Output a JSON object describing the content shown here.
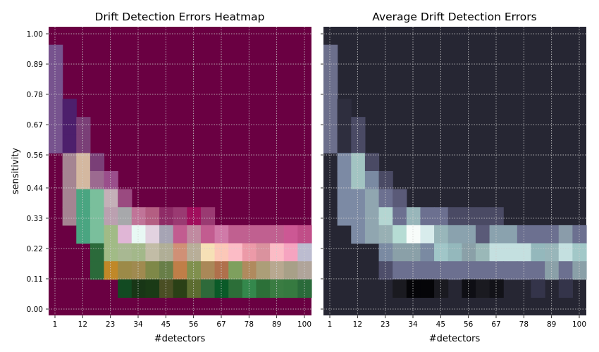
{
  "chart_data": [
    {
      "type": "heatmap",
      "title": "Drift Detection Errors Heatmap",
      "xlabel": "#detectors",
      "ylabel": "sensitivity",
      "x_ticks": [
        "1",
        "12",
        "23",
        "34",
        "45",
        "56",
        "67",
        "78",
        "89",
        "100"
      ],
      "y_ticks": [
        "0.00",
        "0.11",
        "0.22",
        "0.33",
        "0.44",
        "0.56",
        "0.67",
        "0.78",
        "0.89",
        "1.00"
      ],
      "grid": true,
      "background": "#6a0042",
      "cells": [
        {
          "x": 1,
          "y": 0.89,
          "color": "#77538e"
        },
        {
          "x": 1,
          "y": 0.78,
          "color": "#77538e"
        },
        {
          "x": 1,
          "y": 0.67,
          "color": "#77538e"
        },
        {
          "x": 1,
          "y": 0.56,
          "color": "#77538e"
        },
        {
          "x": 1,
          "y": 0.44,
          "color": "#77538e"
        },
        {
          "x": 12,
          "y": 0.67,
          "color": "#4d1f6c"
        },
        {
          "x": 12,
          "y": 0.56,
          "color": "#4d1f6c"
        },
        {
          "x": 12,
          "y": 0.44,
          "color": "#4d1f6c"
        },
        {
          "x": 12,
          "y": 0.33,
          "color": "#a58492"
        },
        {
          "x": 12,
          "y": 0.22,
          "color": "#a58492"
        },
        {
          "x": 23,
          "y": 0.56,
          "color": "#7a3f77"
        },
        {
          "x": 23,
          "y": 0.44,
          "color": "#7a3f77"
        },
        {
          "x": 23,
          "y": 0.33,
          "color": "#d4b8a0"
        },
        {
          "x": 23,
          "y": 0.22,
          "color": "#4aa581"
        },
        {
          "x": 34,
          "y": 0.22,
          "color": "#7abf9c"
        },
        {
          "x": 34,
          "y": 0.11,
          "color": "#2b6a3a"
        }
      ],
      "series": [
        {
          "x": [
            1,
            12,
            23,
            34,
            45,
            56,
            67,
            78,
            89,
            100
          ],
          "values": [
            0.11,
            0.22,
            0.22,
            0.22,
            0.33,
            0.22,
            0.22,
            0.22,
            0.22,
            0.22
          ]
        }
      ],
      "rows": [
        [
          "#6a0042",
          "#6a0042",
          "#6a0042",
          "#6a0042",
          "#6a0042",
          "#6a0042",
          "#6a0042",
          "#6a0042",
          "#6a0042",
          "#6a0042",
          "#6a0042",
          "#6a0042",
          "#6a0042",
          "#6a0042",
          "#6a0042",
          "#6a0042",
          "#6a0042",
          "#6a0042",
          "#6a0042"
        ],
        [
          "#77538e",
          "#6a0042",
          "#6a0042",
          "#6a0042",
          "#6a0042",
          "#6a0042",
          "#6a0042",
          "#6a0042",
          "#6a0042",
          "#6a0042",
          "#6a0042",
          "#6a0042",
          "#6a0042",
          "#6a0042",
          "#6a0042",
          "#6a0042",
          "#6a0042",
          "#6a0042",
          "#6a0042"
        ],
        [
          "#77538e",
          "#6a0042",
          "#6a0042",
          "#6a0042",
          "#6a0042",
          "#6a0042",
          "#6a0042",
          "#6a0042",
          "#6a0042",
          "#6a0042",
          "#6a0042",
          "#6a0042",
          "#6a0042",
          "#6a0042",
          "#6a0042",
          "#6a0042",
          "#6a0042",
          "#6a0042",
          "#6a0042"
        ],
        [
          "#77538e",
          "#6a0042",
          "#6a0042",
          "#6a0042",
          "#6a0042",
          "#6a0042",
          "#6a0042",
          "#6a0042",
          "#6a0042",
          "#6a0042",
          "#6a0042",
          "#6a0042",
          "#6a0042",
          "#6a0042",
          "#6a0042",
          "#6a0042",
          "#6a0042",
          "#6a0042",
          "#6a0042"
        ],
        [
          "#77538e",
          "#4d1f6c",
          "#6a0042",
          "#6a0042",
          "#6a0042",
          "#6a0042",
          "#6a0042",
          "#6a0042",
          "#6a0042",
          "#6a0042",
          "#6a0042",
          "#6a0042",
          "#6a0042",
          "#6a0042",
          "#6a0042",
          "#6a0042",
          "#6a0042",
          "#6a0042",
          "#6a0042"
        ],
        [
          "#77538e",
          "#4d1f6c",
          "#7a3f77",
          "#6a0042",
          "#6a0042",
          "#6a0042",
          "#6a0042",
          "#6a0042",
          "#6a0042",
          "#6a0042",
          "#6a0042",
          "#6a0042",
          "#6a0042",
          "#6a0042",
          "#6a0042",
          "#6a0042",
          "#6a0042",
          "#6a0042",
          "#6a0042"
        ],
        [
          "#77538e",
          "#4d1f6c",
          "#7a3f77",
          "#6a0042",
          "#6a0042",
          "#6a0042",
          "#6a0042",
          "#6a0042",
          "#6a0042",
          "#6a0042",
          "#6a0042",
          "#6a0042",
          "#6a0042",
          "#6a0042",
          "#6a0042",
          "#6a0042",
          "#6a0042",
          "#6a0042",
          "#6a0042"
        ],
        [
          "#6a0042",
          "#a58492",
          "#d4b8a0",
          "#7a3f77",
          "#6a0042",
          "#6a0042",
          "#6a0042",
          "#6a0042",
          "#6a0042",
          "#6a0042",
          "#6a0042",
          "#6a0042",
          "#6a0042",
          "#6a0042",
          "#6a0042",
          "#6a0042",
          "#6a0042",
          "#6a0042",
          "#6a0042"
        ],
        [
          "#6a0042",
          "#a58492",
          "#d4b8a0",
          "#9c6a90",
          "#9a4e8b",
          "#6a0042",
          "#6a0042",
          "#6a0042",
          "#6a0042",
          "#6a0042",
          "#6a0042",
          "#6a0042",
          "#6a0042",
          "#6a0042",
          "#6a0042",
          "#6a0042",
          "#6a0042",
          "#6a0042",
          "#6a0042"
        ],
        [
          "#6a0042",
          "#a58492",
          "#4aa581",
          "#7abf9c",
          "#c4b0b8",
          "#9a4a80",
          "#6a0042",
          "#6a0042",
          "#6a0042",
          "#6a0042",
          "#6a0042",
          "#6a0042",
          "#6a0042",
          "#6a0042",
          "#6a0042",
          "#6a0042",
          "#6a0042",
          "#6a0042",
          "#6a0042"
        ],
        [
          "#6a0042",
          "#a58492",
          "#4aa581",
          "#7abf9c",
          "#bba0b0",
          "#a7a8ab",
          "#c07498",
          "#b45e82",
          "#8e2b66",
          "#9a3a72",
          "#a00e5c",
          "#9a3a72",
          "#6a0042",
          "#6a0042",
          "#6a0042",
          "#6a0042",
          "#6a0042",
          "#6a0042",
          "#6a0042"
        ],
        [
          "#6a0042",
          "#6a0042",
          "#4aa581",
          "#7abf9c",
          "#a1bb86",
          "#e0b6d6",
          "#e8f8f4",
          "#e2d2e0",
          "#a6a4b4",
          "#c25c90",
          "#c08aa0",
          "#c25c90",
          "#d07aa8",
          "#c06090",
          "#c06090",
          "#c06090",
          "#c06090",
          "#cc5894",
          "#c04e88"
        ],
        [
          "#6a0042",
          "#6a0042",
          "#6a0042",
          "#2b6a3a",
          "#a1bb86",
          "#a8b892",
          "#a3b88a",
          "#c2bca6",
          "#b0ae96",
          "#d09076",
          "#b8ae98",
          "#f6e0b6",
          "#fcc8b8",
          "#fcbcc6",
          "#ec9aa8",
          "#da929e",
          "#fcbcc6",
          "#f6a4c0",
          "#bcbcd0"
        ],
        [
          "#6a0042",
          "#6a0042",
          "#6a0042",
          "#2b6a3a",
          "#c08828",
          "#9c8a48",
          "#a08a50",
          "#7e8848",
          "#687e48",
          "#c07e48",
          "#80904e",
          "#aa8858",
          "#b0704c",
          "#7ea05e",
          "#b08a5e",
          "#ac9e78",
          "#b8a890",
          "#a8a088",
          "#b0a49a"
        ],
        [
          "#6a0042",
          "#6a0042",
          "#6a0042",
          "#6a0042",
          "#6a0042",
          "#124a22",
          "#183616",
          "#1a3a16",
          "#4a4e24",
          "#2a4016",
          "#5c6c30",
          "#2e6a3a",
          "#0a5a28",
          "#2c6e38",
          "#34884c",
          "#2c7038",
          "#3a7c42",
          "#367a40",
          "#2a6a3a"
        ],
        [
          "#6a0042",
          "#6a0042",
          "#6a0042",
          "#6a0042",
          "#6a0042",
          "#6a0042",
          "#6a0042",
          "#6a0042",
          "#6a0042",
          "#6a0042",
          "#6a0042",
          "#6a0042",
          "#6a0042",
          "#6a0042",
          "#6a0042",
          "#6a0042",
          "#6a0042",
          "#6a0042",
          "#6a0042"
        ]
      ]
    },
    {
      "type": "heatmap",
      "title": "Average Drift Detection Errors",
      "xlabel": "#detectors",
      "y_ticks": [
        "0.00",
        "0.11",
        "0.22",
        "0.33",
        "0.44",
        "0.56",
        "0.67",
        "0.78",
        "0.89",
        "1.00"
      ],
      "x_ticks": [
        "1",
        "12",
        "23",
        "34",
        "45",
        "56",
        "67",
        "78",
        "89",
        "100"
      ],
      "grid": true,
      "background": "#262633",
      "rows": [
        [
          "#262633",
          "#262633",
          "#262633",
          "#262633",
          "#262633",
          "#262633",
          "#262633",
          "#262633",
          "#262633",
          "#262633",
          "#262633",
          "#262633",
          "#262633",
          "#262633",
          "#262633",
          "#262633",
          "#262633",
          "#262633",
          "#262633"
        ],
        [
          "#6c6f8c",
          "#262633",
          "#262633",
          "#262633",
          "#262633",
          "#262633",
          "#262633",
          "#262633",
          "#262633",
          "#262633",
          "#262633",
          "#262633",
          "#262633",
          "#262633",
          "#262633",
          "#262633",
          "#262633",
          "#262633",
          "#262633"
        ],
        [
          "#6c6f8c",
          "#262633",
          "#262633",
          "#262633",
          "#262633",
          "#262633",
          "#262633",
          "#262633",
          "#262633",
          "#262633",
          "#262633",
          "#262633",
          "#262633",
          "#262633",
          "#262633",
          "#262633",
          "#262633",
          "#262633",
          "#262633"
        ],
        [
          "#6c6f8c",
          "#262633",
          "#262633",
          "#262633",
          "#262633",
          "#262633",
          "#262633",
          "#262633",
          "#262633",
          "#262633",
          "#262633",
          "#262633",
          "#262633",
          "#262633",
          "#262633",
          "#262633",
          "#262633",
          "#262633",
          "#262633"
        ],
        [
          "#6c6f8c",
          "#2e2e3e",
          "#262633",
          "#262633",
          "#262633",
          "#262633",
          "#262633",
          "#262633",
          "#262633",
          "#262633",
          "#262633",
          "#262633",
          "#262633",
          "#262633",
          "#262633",
          "#262633",
          "#262633",
          "#262633",
          "#262633"
        ],
        [
          "#6c6f8c",
          "#2e2e3e",
          "#4a4a64",
          "#262633",
          "#262633",
          "#262633",
          "#262633",
          "#262633",
          "#262633",
          "#262633",
          "#262633",
          "#262633",
          "#262633",
          "#262633",
          "#262633",
          "#262633",
          "#262633",
          "#262633",
          "#262633"
        ],
        [
          "#6c6f8c",
          "#2e2e3e",
          "#4a4a64",
          "#262633",
          "#262633",
          "#262633",
          "#262633",
          "#262633",
          "#262633",
          "#262633",
          "#262633",
          "#262633",
          "#262633",
          "#262633",
          "#262633",
          "#262633",
          "#262633",
          "#262633",
          "#262633"
        ],
        [
          "#262633",
          "#7c8aa4",
          "#a2c4c2",
          "#4a4a64",
          "#262633",
          "#262633",
          "#262633",
          "#262633",
          "#262633",
          "#262633",
          "#262633",
          "#262633",
          "#262633",
          "#262633",
          "#262633",
          "#262633",
          "#262633",
          "#262633",
          "#262633"
        ],
        [
          "#262633",
          "#7c8aa4",
          "#a2c4c2",
          "#7a8aa2",
          "#4a4a64",
          "#262633",
          "#262633",
          "#262633",
          "#262633",
          "#262633",
          "#262633",
          "#262633",
          "#262633",
          "#262633",
          "#262633",
          "#262633",
          "#262633",
          "#262633",
          "#262633"
        ],
        [
          "#262633",
          "#7c8aa4",
          "#7c8aa4",
          "#90a6b0",
          "#6c7090",
          "#5a5a78",
          "#262633",
          "#262633",
          "#262633",
          "#262633",
          "#262633",
          "#262633",
          "#262633",
          "#262633",
          "#262633",
          "#262633",
          "#262633",
          "#262633",
          "#262633"
        ],
        [
          "#262633",
          "#7c8aa4",
          "#7c8aa4",
          "#90a6b0",
          "#b4d6d2",
          "#6c7090",
          "#98b6ba",
          "#6c7090",
          "#6c7090",
          "#4a4a64",
          "#4a4a64",
          "#4a4a64",
          "#4a4a64",
          "#262633",
          "#262633",
          "#262633",
          "#262633",
          "#262633",
          "#262633"
        ],
        [
          "#262633",
          "#262633",
          "#7c8aa4",
          "#90a6b0",
          "#98b0b4",
          "#b6dcd4",
          "#f8fcfa",
          "#d8ecec",
          "#98b6ba",
          "#8aa2ae",
          "#8aa2ae",
          "#5a5a78",
          "#8aa2ae",
          "#8aa2ae",
          "#6c7090",
          "#6c7090",
          "#6c7090",
          "#8a9caa",
          "#6c7090"
        ],
        [
          "#262633",
          "#262633",
          "#262633",
          "#262633",
          "#7a8aa2",
          "#8aa0a8",
          "#8aa0a8",
          "#7a8aa2",
          "#a0c6c8",
          "#94b8bc",
          "#8aa0a8",
          "#9ab8b8",
          "#c4e0e0",
          "#c4e0e0",
          "#c4e0e0",
          "#94b8bc",
          "#98b6ba",
          "#c4e0e0",
          "#a2c8c8"
        ],
        [
          "#262633",
          "#262633",
          "#262633",
          "#262633",
          "#4e4e6a",
          "#6c7090",
          "#6c7090",
          "#6c7090",
          "#6c7090",
          "#6c7090",
          "#6c7090",
          "#6c7090",
          "#6c7090",
          "#6c7090",
          "#6c7090",
          "#6c7090",
          "#8aa0a8",
          "#6c7090",
          "#8aa0a8"
        ],
        [
          "#262633",
          "#262633",
          "#262633",
          "#262633",
          "#262633",
          "#1a1a20",
          "#050508",
          "#050508",
          "#1a1a20",
          "#262633",
          "#0e0e14",
          "#1a1a20",
          "#121218",
          "#262633",
          "#262633",
          "#34344a",
          "#262633",
          "#34344a",
          "#262633"
        ],
        [
          "#262633",
          "#262633",
          "#262633",
          "#262633",
          "#262633",
          "#262633",
          "#262633",
          "#262633",
          "#262633",
          "#262633",
          "#262633",
          "#262633",
          "#262633",
          "#262633",
          "#262633",
          "#262633",
          "#262633",
          "#262633",
          "#262633"
        ]
      ]
    }
  ]
}
